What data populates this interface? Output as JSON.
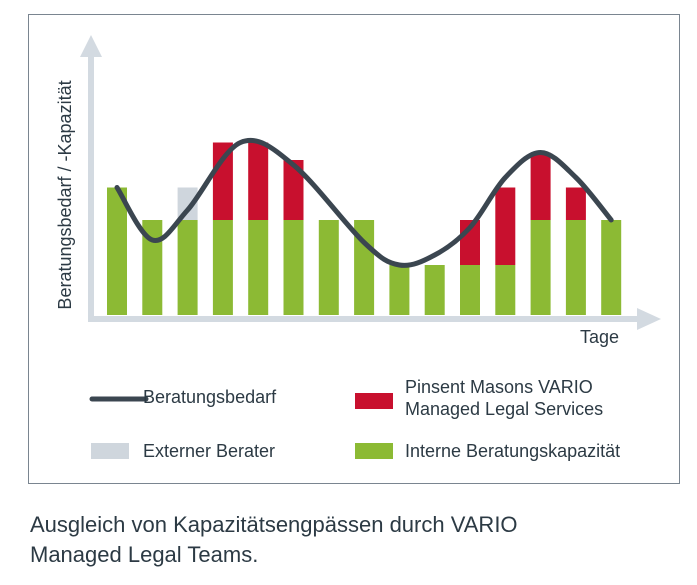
{
  "chart_data": {
    "type": "bar",
    "stacked": true,
    "ylabel": "Beratungsbedarf / -Kapazität",
    "xlabel": "Tage",
    "y_ticks_shown": false,
    "x_ticks_shown": false,
    "grid": false,
    "ylim": [
      0,
      100
    ],
    "categories": [
      "1",
      "2",
      "3",
      "4",
      "5",
      "6",
      "7",
      "8",
      "9",
      "10",
      "11",
      "12",
      "13",
      "14",
      "15"
    ],
    "series": [
      {
        "name": "Interne Beratungskapazität",
        "color": "#8cba34",
        "values": [
          51,
          38,
          38,
          38,
          38,
          38,
          38,
          38,
          20,
          20,
          20,
          20,
          38,
          38,
          38
        ]
      },
      {
        "name": "Externer Berater",
        "color": "#cfd6dd",
        "values": [
          0,
          0,
          13,
          0,
          0,
          0,
          0,
          0,
          0,
          0,
          0,
          0,
          0,
          0,
          0
        ]
      },
      {
        "name": "Pinsent Masons VARIO Managed Legal Services",
        "color": "#c8102e",
        "values": [
          0,
          0,
          0,
          31,
          31,
          24,
          0,
          0,
          0,
          0,
          18,
          31,
          27,
          13,
          0
        ]
      }
    ],
    "line": {
      "name": "Beratungsbedarf",
      "color": "#3b4650",
      "x": [
        1,
        2,
        3,
        4.5,
        6,
        8,
        9,
        10,
        11,
        12,
        13,
        14,
        15
      ],
      "y": [
        51,
        30,
        42,
        69,
        60,
        29,
        20,
        24,
        35,
        55,
        65,
        55,
        38
      ]
    },
    "legend": {
      "placement": "bottom",
      "entries": [
        {
          "label": "Beratungsbedarf",
          "kind": "line",
          "color": "#3b4650"
        },
        {
          "label": "Pinsent Masons VARIO\nManaged Legal Services",
          "kind": "box",
          "color": "#c8102e"
        },
        {
          "label": "Externer Berater",
          "kind": "box",
          "color": "#cfd6dd"
        },
        {
          "label": "Interne Beratungskapazität",
          "kind": "box",
          "color": "#8cba34"
        }
      ]
    }
  },
  "legend_labels": {
    "demand": "Beratungsbedarf",
    "pinsent_line1": "Pinsent Masons VARIO",
    "pinsent_line2": "Managed Legal Services",
    "external": "Externer Berater",
    "internal": "Interne Beratungskapazität"
  },
  "caption": {
    "line1": "Ausgleich von Kapazitätsengpässen durch VARIO",
    "line2": "Managed Legal Teams."
  },
  "colors": {
    "axis": "#d3dae1",
    "frame": "#7a8590",
    "text": "#2c3a44"
  }
}
